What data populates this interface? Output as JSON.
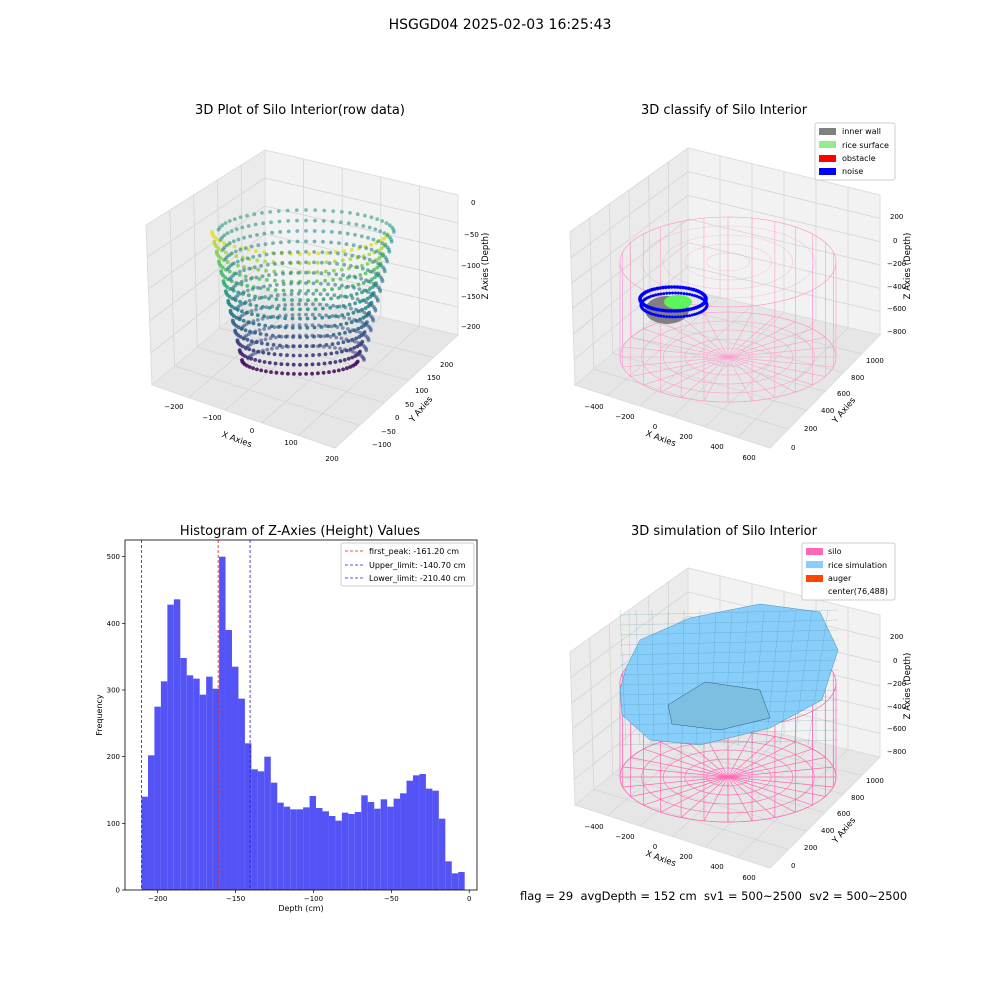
{
  "figure": {
    "suptitle": "HSGGD04 2025-02-03 16:25:43",
    "footer": "flag = 29  avgDepth = 152 cm  sv1 = 500~2500  sv2 = 500~2500"
  },
  "colors": {
    "histogram_bar": "#4b4bf5",
    "first_peak_line": "#e41a1c",
    "limit_lines": "#1f1fd8",
    "pane_face": "#f2f2f2",
    "grid": "#d9d9d9",
    "silo_wire": "#ff69b4",
    "rice_simulation": "#87cefa",
    "inner_wall": "#808080",
    "rice_surface": "#90ee90",
    "obstacle": "#ff0000",
    "noise": "#0000ff",
    "auger": "#ff4500"
  },
  "chart_data": [
    {
      "type": "scatter",
      "dimension": "3d",
      "title": "3D Plot of Silo Interior(row data)",
      "xlabel": "X Axies",
      "ylabel": "Y Axies",
      "zlabel": "Z Axies (Depth)",
      "xticks": [
        "−200",
        "−100",
        "0",
        "100",
        "200"
      ],
      "yticks": [
        "−100",
        "−50",
        "0",
        "50",
        "100",
        "150",
        "200"
      ],
      "zticks": [
        "0",
        "−50",
        "−100",
        "−150",
        "−200"
      ],
      "xlim": [
        -250,
        250
      ],
      "ylim": [
        -120,
        230
      ],
      "zlim": [
        -220,
        10
      ],
      "colormap": "viridis"
    },
    {
      "type": "scatter",
      "dimension": "3d",
      "title": "3D classify of Silo Interior",
      "xlabel": "X Axies",
      "ylabel": "Y Axies",
      "zlabel": "Z Axies (Depth)",
      "xticks": [
        "−400",
        "−200",
        "0",
        "200",
        "400",
        "600"
      ],
      "yticks": [
        "0",
        "200",
        "400",
        "600",
        "800",
        "1000"
      ],
      "zticks": [
        "200",
        "0",
        "−200",
        "−400",
        "−600",
        "−800"
      ],
      "legend": [
        "inner wall",
        "rice surface",
        "obstacle",
        "noise"
      ],
      "legend_loc": "top-right"
    },
    {
      "type": "bar",
      "title": "Histogram of Z-Axies (Height) Values",
      "xlabel": "Depth (cm)",
      "ylabel": "Frequency",
      "xlim": [
        -221,
        5
      ],
      "ylim": [
        0,
        525
      ],
      "xticks": [
        -200,
        -150,
        -100,
        -50,
        0
      ],
      "xtick_labels": [
        "−200",
        "−150",
        "−100",
        "−50",
        "0"
      ],
      "yticks": [
        0,
        100,
        200,
        300,
        400,
        500
      ],
      "bin_start": -210.4,
      "bin_width": 4.15,
      "values": [
        140,
        202,
        275,
        313,
        428,
        436,
        348,
        322,
        317,
        293,
        320,
        302,
        500,
        390,
        335,
        287,
        220,
        181,
        178,
        200,
        161,
        131,
        125,
        121,
        121,
        124,
        141,
        123,
        118,
        111,
        104,
        116,
        114,
        117,
        142,
        132,
        122,
        136,
        125,
        137,
        145,
        164,
        172,
        174,
        152,
        149,
        107,
        43,
        25,
        27
      ],
      "vlines": [
        {
          "x": -161.2,
          "label": "first_peak: -161.20 cm",
          "color": "#e41a1c"
        },
        {
          "x": -140.7,
          "label": "Upper_limit: -140.70 cm",
          "color": "#1f1fd8"
        },
        {
          "x": -210.4,
          "label": "Lower_limit: -210.40 cm",
          "color": "#1f1fd8"
        }
      ],
      "legend_loc": "top-right",
      "grid": false
    },
    {
      "type": "surface",
      "dimension": "3d",
      "title": "3D simulation of Silo Interior",
      "xlabel": "X Axies",
      "ylabel": "Y Axies",
      "zlabel": "Z Axies (Depth)",
      "xticks": [
        "−400",
        "−200",
        "0",
        "200",
        "400",
        "600"
      ],
      "yticks": [
        "0",
        "200",
        "400",
        "600",
        "800",
        "1000"
      ],
      "zticks": [
        "200",
        "0",
        "−200",
        "−400",
        "−600",
        "−800"
      ],
      "legend": [
        "silo",
        "rice simulation",
        "auger",
        "center(76,488)"
      ],
      "legend_loc": "top-right"
    }
  ]
}
